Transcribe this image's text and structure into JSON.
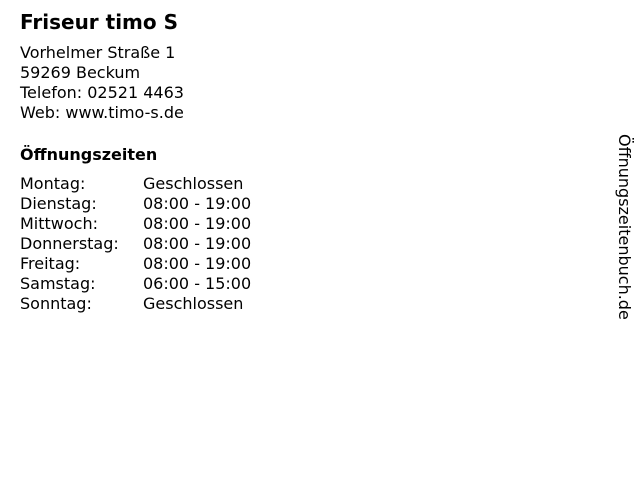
{
  "business": {
    "name": "Friseur timo S",
    "street": "Vorhelmer Straße 1",
    "city": "59269 Beckum",
    "phone": "Telefon: 02521 4463",
    "web": "Web: www.timo-s.de"
  },
  "hours": {
    "heading": "Öffnungszeiten",
    "rows": [
      {
        "day": "Montag:",
        "time": "Geschlossen"
      },
      {
        "day": "Dienstag:",
        "time": "08:00 - 19:00"
      },
      {
        "day": "Mittwoch:",
        "time": "08:00 - 19:00"
      },
      {
        "day": "Donnerstag:",
        "time": "08:00 - 19:00"
      },
      {
        "day": "Freitag:",
        "time": "08:00 - 19:00"
      },
      {
        "day": "Samstag:",
        "time": "06:00 - 15:00"
      },
      {
        "day": "Sonntag:",
        "time": "Geschlossen"
      }
    ]
  },
  "watermark": "Öffnungszeitenbuch.de"
}
